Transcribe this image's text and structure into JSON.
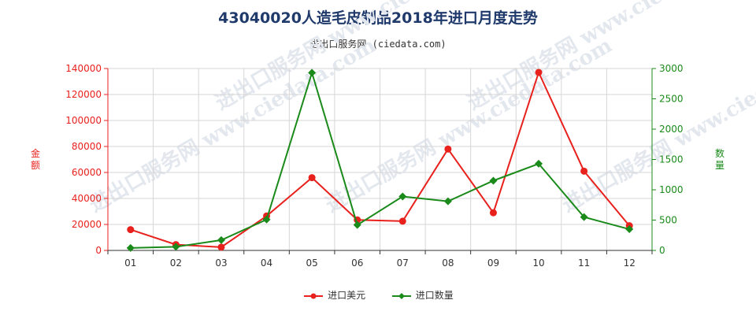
{
  "title": "43040020人造毛皮制品2018年进口月度走势",
  "subtitle": "进出口服务网 (ciedata.com)",
  "watermark": "进出口服务网 www.ciedata.com",
  "colors": {
    "amount": "#e8211d",
    "quantity": "#1a8a1a",
    "title": "#1f3a6b"
  },
  "chart_data": {
    "type": "line",
    "categories": [
      "01",
      "02",
      "03",
      "04",
      "05",
      "06",
      "07",
      "08",
      "09",
      "10",
      "11",
      "12"
    ],
    "y_left": {
      "label": "金额",
      "min": 0,
      "max": 140000,
      "ticks": [
        0,
        20000,
        40000,
        60000,
        80000,
        100000,
        120000,
        140000
      ]
    },
    "y_right": {
      "label": "数量",
      "min": 0,
      "max": 3000,
      "ticks": [
        0,
        500,
        1000,
        1500,
        2000,
        2500,
        3000
      ]
    },
    "grid": true,
    "legend_position": "bottom-center",
    "series": [
      {
        "name": "进口美元",
        "axis": "left",
        "color": "#e8211d",
        "marker": "circle",
        "values": [
          16000,
          4500,
          2500,
          26500,
          56000,
          23500,
          22500,
          78000,
          29000,
          137000,
          61000,
          19000
        ]
      },
      {
        "name": "进口数量",
        "axis": "right",
        "color": "#1a8a1a",
        "marker": "diamond",
        "values": [
          40,
          60,
          170,
          510,
          2930,
          420,
          890,
          810,
          1150,
          1430,
          550,
          350
        ]
      }
    ]
  }
}
